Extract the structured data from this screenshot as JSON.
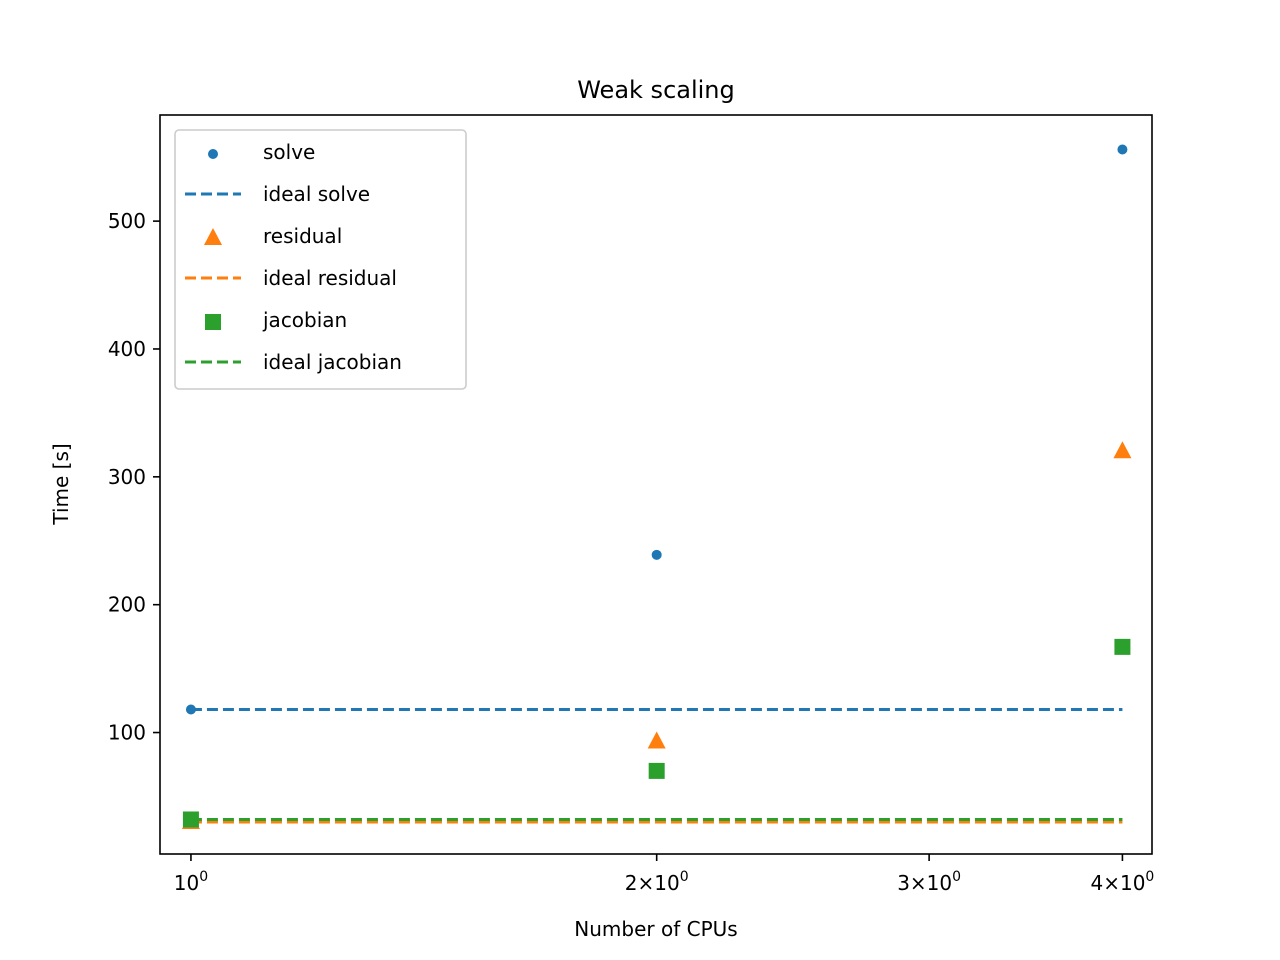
{
  "chart_data": {
    "type": "scatter",
    "title": "Weak scaling",
    "xlabel": "Number of CPUs",
    "ylabel": "Time [s]",
    "xscale": "log",
    "x": [
      1,
      2,
      4
    ],
    "xlim": [
      0.955,
      4.18
    ],
    "ylim": [
      5,
      583
    ],
    "xticks": [
      {
        "value": 1,
        "base": "10",
        "mant": "",
        "exp": "0"
      },
      {
        "value": 2,
        "base": "10",
        "mant": "2",
        "exp": "0"
      },
      {
        "value": 3,
        "base": "10",
        "mant": "3",
        "exp": "0"
      },
      {
        "value": 4,
        "base": "10",
        "mant": "4",
        "exp": "0"
      }
    ],
    "yticks": [
      100,
      200,
      300,
      400,
      500
    ],
    "grid": false,
    "legend_position": "upper left",
    "series": [
      {
        "name": "solve",
        "kind": "scatter",
        "marker": "circle",
        "color": "#1f77b4",
        "x": [
          1,
          2,
          4
        ],
        "values": [
          118,
          239,
          556
        ]
      },
      {
        "name": "ideal solve",
        "kind": "dashed-line",
        "color": "#1f77b4",
        "x": [
          1,
          4
        ],
        "values": [
          118,
          118
        ]
      },
      {
        "name": "residual",
        "kind": "scatter",
        "marker": "triangle",
        "color": "#ff7f0e",
        "x": [
          1,
          2,
          4
        ],
        "values": [
          30,
          93,
          320
        ]
      },
      {
        "name": "ideal residual",
        "kind": "dashed-line",
        "color": "#ff7f0e",
        "x": [
          1,
          4
        ],
        "values": [
          30,
          30
        ]
      },
      {
        "name": "jacobian",
        "kind": "scatter",
        "marker": "square",
        "color": "#2ca02c",
        "x": [
          1,
          2,
          4
        ],
        "values": [
          32,
          70,
          167
        ]
      },
      {
        "name": "ideal jacobian",
        "kind": "dashed-line",
        "color": "#2ca02c",
        "x": [
          1,
          4
        ],
        "values": [
          32,
          32
        ]
      }
    ]
  }
}
